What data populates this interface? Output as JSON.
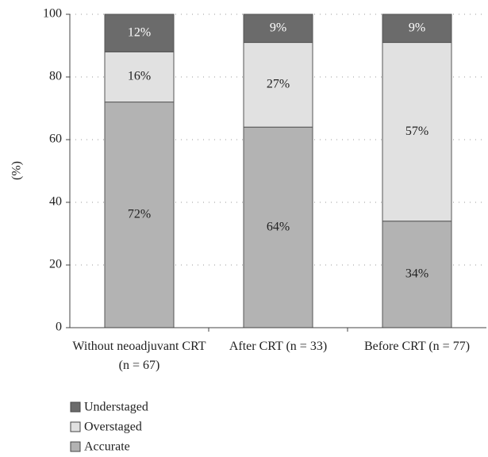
{
  "chart_data": {
    "type": "stacked_bar",
    "y_label": "(%)",
    "categories": [
      "Without neoadjuvant CRT (n = 67)",
      "After CRT (n = 33)",
      "Before CRT (n = 77)"
    ],
    "series": [
      {
        "name": "Accurate",
        "color": "#b3b3b3",
        "label_color": "#222222",
        "values": [
          72,
          64,
          34
        ],
        "value_labels": [
          "72%",
          "64%",
          "34%"
        ]
      },
      {
        "name": "Overstaged",
        "color": "#e1e1e1",
        "label_color": "#222222",
        "values": [
          16,
          27,
          57
        ],
        "value_labels": [
          "16%",
          "27%",
          "57%"
        ]
      },
      {
        "name": "Understaged",
        "color": "#6b6b6b",
        "label_color": "#ffffff",
        "values": [
          12,
          9,
          9
        ],
        "value_labels": [
          "12%",
          "9%",
          "9%"
        ]
      }
    ],
    "ylim": [
      0,
      100
    ],
    "yticks": [
      0,
      20,
      40,
      60,
      80,
      100
    ],
    "grid": true
  }
}
